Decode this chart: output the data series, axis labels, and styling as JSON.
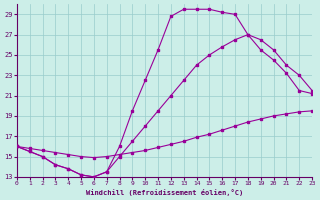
{
  "xlabel": "Windchill (Refroidissement éolien,°C)",
  "bg_color": "#cceee8",
  "grid_color": "#99cccc",
  "line_color": "#990099",
  "xlim": [
    0,
    23
  ],
  "ylim": [
    13,
    30
  ],
  "yticks": [
    13,
    15,
    17,
    19,
    21,
    23,
    25,
    27,
    29
  ],
  "xticks": [
    0,
    1,
    2,
    3,
    4,
    5,
    6,
    7,
    8,
    9,
    10,
    11,
    12,
    13,
    14,
    15,
    16,
    17,
    18,
    19,
    20,
    21,
    22,
    23
  ],
  "curve1_x": [
    0,
    1,
    2,
    3,
    4,
    5,
    6,
    7,
    8,
    9,
    10,
    11,
    12,
    13,
    14,
    15,
    16,
    17,
    18,
    19,
    20,
    21,
    22,
    23
  ],
  "curve1_y": [
    16.0,
    15.8,
    15.6,
    15.4,
    15.2,
    15.0,
    14.9,
    15.0,
    15.2,
    15.4,
    15.6,
    15.9,
    16.2,
    16.5,
    16.9,
    17.2,
    17.6,
    18.0,
    18.4,
    18.7,
    19.0,
    19.2,
    19.4,
    19.5
  ],
  "curve2_x": [
    0,
    1,
    2,
    3,
    4,
    5,
    6,
    7,
    8,
    9,
    10,
    11,
    12,
    13,
    14,
    15,
    16,
    17,
    18,
    19,
    20,
    21,
    22,
    23
  ],
  "curve2_y": [
    16.0,
    15.5,
    15.0,
    14.2,
    13.8,
    13.2,
    13.0,
    13.5,
    15.0,
    16.5,
    18.0,
    19.5,
    21.0,
    22.5,
    24.0,
    25.0,
    25.8,
    26.5,
    27.0,
    26.5,
    25.5,
    24.0,
    23.0,
    21.5
  ],
  "curve3_x": [
    0,
    1,
    2,
    3,
    4,
    5,
    6,
    7,
    8,
    9,
    10,
    11,
    12,
    13,
    14,
    15,
    16,
    17,
    18,
    19,
    20,
    21,
    22,
    23
  ],
  "curve3_y": [
    16.0,
    15.5,
    15.0,
    14.2,
    13.8,
    13.2,
    13.0,
    13.5,
    16.0,
    19.5,
    22.5,
    25.5,
    28.8,
    29.5,
    29.5,
    29.5,
    29.2,
    29.0,
    27.0,
    25.5,
    24.5,
    23.2,
    21.5,
    21.2
  ]
}
